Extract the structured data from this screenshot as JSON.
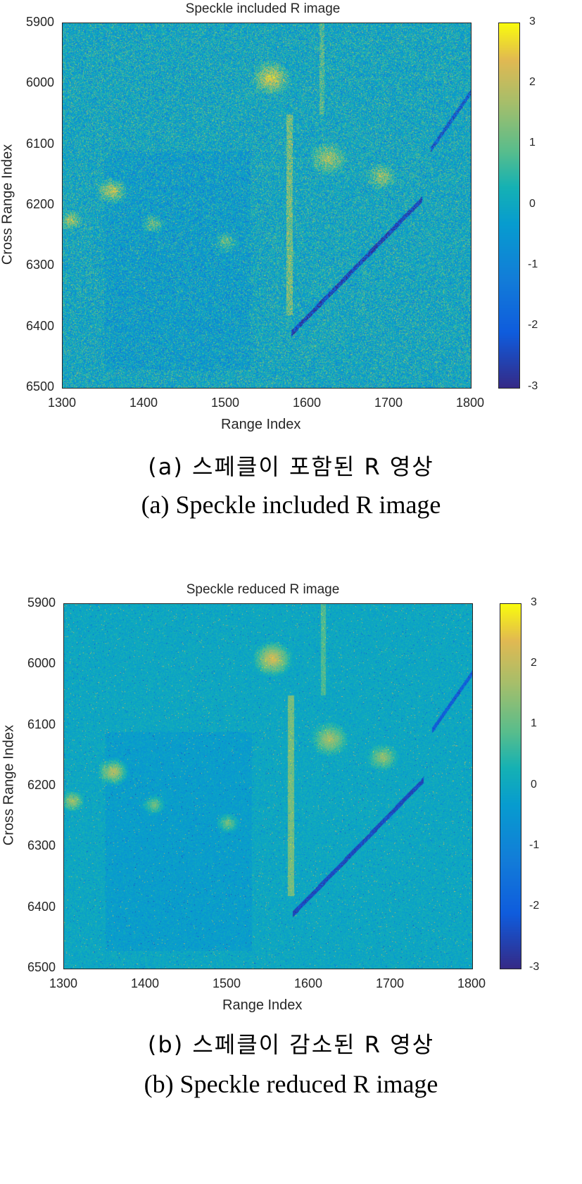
{
  "chart_data": [
    {
      "type": "heatmap",
      "title": "Speckle included R image",
      "xlabel": "Range Index",
      "ylabel": "Cross Range Index",
      "xlim": [
        1300,
        1800
      ],
      "ylim": [
        5900,
        6500
      ],
      "xticks": [
        "1300",
        "1400",
        "1500",
        "1600",
        "1700",
        "1800"
      ],
      "yticks": [
        "5900",
        "6000",
        "6100",
        "6200",
        "6300",
        "6400",
        "6500"
      ],
      "colorbar": {
        "range": [
          -3,
          3
        ],
        "ticks": [
          "3",
          "2",
          "1",
          "0",
          "-1",
          "-2",
          "-3"
        ],
        "colormap": "parula"
      },
      "speckle": "high",
      "caption_ko": "(a) 스페클이 포함된 R 영상",
      "caption_en": "(a) Speckle included R image"
    },
    {
      "type": "heatmap",
      "title": "Speckle reduced R image",
      "xlabel": "Range Index",
      "ylabel": "Cross Range Index",
      "xlim": [
        1300,
        1800
      ],
      "ylim": [
        5900,
        6500
      ],
      "xticks": [
        "1300",
        "1400",
        "1500",
        "1600",
        "1700",
        "1800"
      ],
      "yticks": [
        "5900",
        "6000",
        "6100",
        "6200",
        "6300",
        "6400",
        "6500"
      ],
      "colorbar": {
        "range": [
          -3,
          3
        ],
        "ticks": [
          "3",
          "2",
          "1",
          "0",
          "-1",
          "-2",
          "-3"
        ],
        "colormap": "parula"
      },
      "speckle": "low",
      "caption_ko": "(b) 스페클이 감소된 R 영상",
      "caption_en": "(b) Speckle reduced R image"
    }
  ]
}
